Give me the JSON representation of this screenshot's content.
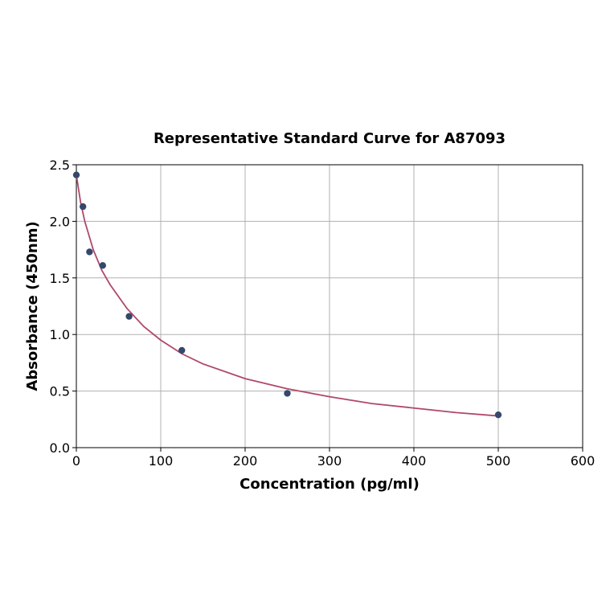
{
  "chart_data": {
    "type": "scatter",
    "title": "Representative Standard Curve for A87093",
    "xlabel": "Concentration (pg/ml)",
    "ylabel": "Absorbance (450nm)",
    "xlim": [
      0,
      600
    ],
    "ylim": [
      0,
      2.5
    ],
    "xticks": [
      0,
      100,
      200,
      300,
      400,
      500,
      600
    ],
    "yticks": [
      0.0,
      0.5,
      1.0,
      1.5,
      2.0,
      2.5
    ],
    "xtick_labels": [
      "0",
      "100",
      "200",
      "300",
      "400",
      "500",
      "600"
    ],
    "ytick_labels": [
      "0.0",
      "0.5",
      "1.0",
      "1.5",
      "2.0",
      "2.5"
    ],
    "grid": true,
    "points": {
      "x": [
        0,
        7.8,
        15.6,
        31.25,
        62.5,
        125,
        250,
        500
      ],
      "y": [
        2.41,
        2.13,
        1.73,
        1.61,
        1.16,
        0.86,
        0.48,
        0.29
      ]
    },
    "fit_curve": {
      "x": [
        0,
        5,
        10,
        20,
        30,
        40,
        60,
        80,
        100,
        125,
        150,
        200,
        250,
        300,
        350,
        400,
        450,
        500
      ],
      "y": [
        2.41,
        2.17,
        2.0,
        1.75,
        1.57,
        1.44,
        1.23,
        1.07,
        0.95,
        0.83,
        0.74,
        0.61,
        0.52,
        0.45,
        0.39,
        0.35,
        0.31,
        0.28
      ]
    },
    "colors": {
      "points": "#34486b",
      "curve": "#b0486a",
      "grid": "#b0b0b0"
    }
  }
}
